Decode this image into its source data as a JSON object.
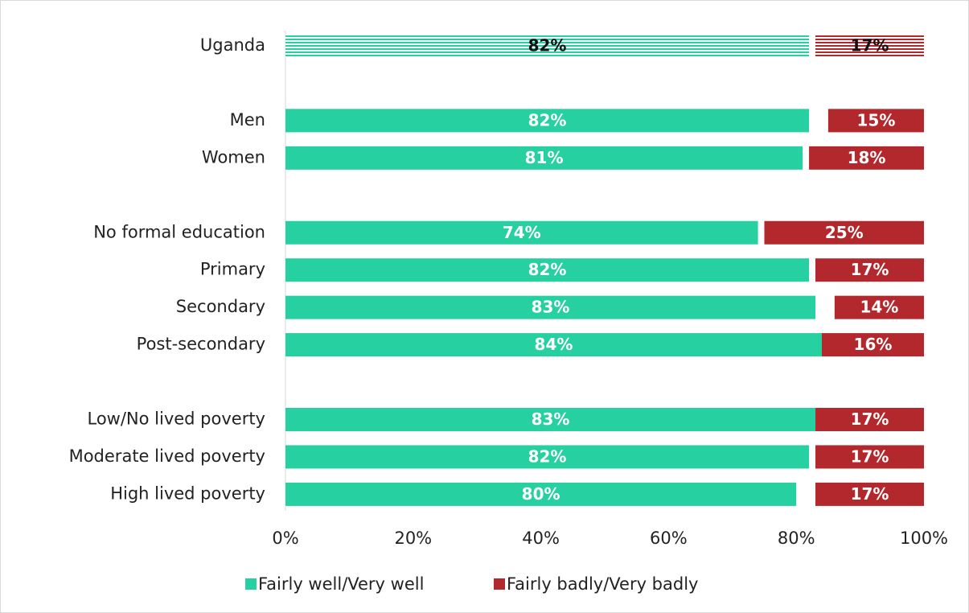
{
  "chart_data": {
    "type": "bar_split",
    "orientation": "horizontal",
    "categories": [
      "Uganda",
      null,
      "Men",
      "Women",
      null,
      "No formal education",
      "Primary",
      "Secondary",
      "Post-secondary",
      null,
      "Low/No lived poverty",
      "Moderate lived poverty",
      "High lived poverty"
    ],
    "hatched": "Uganda",
    "series": [
      {
        "name": "Fairly well/Very well",
        "color": "#26d0a0",
        "align": "left",
        "values": [
          82,
          null,
          82,
          81,
          null,
          74,
          82,
          83,
          84,
          null,
          83,
          82,
          80
        ],
        "value_labels": [
          "82%",
          null,
          "82%",
          "81%",
          null,
          "74%",
          "82%",
          "83%",
          "84%",
          null,
          "83%",
          "82%",
          "80%"
        ]
      },
      {
        "name": "Fairly badly/Very badly",
        "color": "#b3282d",
        "align": "right",
        "values": [
          17,
          null,
          15,
          18,
          null,
          25,
          17,
          14,
          16,
          null,
          17,
          17,
          17
        ],
        "value_labels": [
          "17%",
          null,
          "15%",
          "18%",
          null,
          "25%",
          "17%",
          "14%",
          "16%",
          null,
          "17%",
          "17%",
          "17%"
        ]
      }
    ],
    "xlim": [
      0,
      100
    ],
    "xticks": [
      {
        "value": 0,
        "label": "0%"
      },
      {
        "value": 20,
        "label": "20%"
      },
      {
        "value": 40,
        "label": "40%"
      },
      {
        "value": 60,
        "label": "60%"
      },
      {
        "value": 80,
        "label": "80%"
      },
      {
        "value": 100,
        "label": "100%"
      }
    ],
    "legend": "bottom"
  }
}
